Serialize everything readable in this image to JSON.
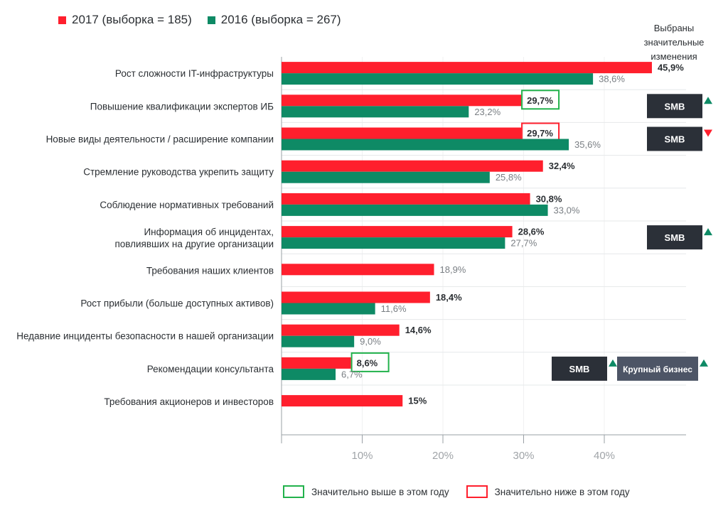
{
  "legend_top": [
    {
      "label": "2017 (выборка = 185)",
      "color": "#ff1f2d"
    },
    {
      "label": "2016 (выборка = 267)",
      "color": "#0e8a65"
    }
  ],
  "side_title": "Выбраны значительные изменения",
  "legend_bottom": [
    {
      "label": "Значительно выше в этом году",
      "border": "#22b24c"
    },
    {
      "label": "Значительно ниже в этом году",
      "border": "#ff1f2d"
    }
  ],
  "colors": {
    "red": "#ff1f2d",
    "green": "#0e8a65",
    "badge_dark": "#2b3038",
    "badge_gray": "#4d5566",
    "arrow_up": "#0e8a65",
    "arrow_down": "#ff1f2d",
    "axis": "#9aa0a6"
  },
  "chart_data": {
    "type": "bar",
    "orientation": "horizontal",
    "categories": [
      "Рост сложности IT-инфраструктуры",
      "Повышение квалификации экспертов ИБ",
      "Новые виды деятельности / расширение компании",
      "Стремление руководства укрепить защиту",
      "Соблюдение нормативных требований",
      "Информация об инцидентах,\nповлиявших на другие организации",
      "Требования наших клиентов",
      "Рост прибыли (больше доступных активов)",
      "Недавние инциденты безопасности в нашей организации",
      "Рекомендации консультанта",
      "Требования акционеров и инвесторов"
    ],
    "series": [
      {
        "name": "2017 (выборка = 185)",
        "values": [
          45.9,
          29.7,
          29.7,
          32.4,
          30.8,
          28.6,
          18.9,
          18.4,
          14.6,
          8.6,
          15
        ],
        "labels": [
          "45,9%",
          "29,7%",
          "29,7%",
          "32,4%",
          "30,8%",
          "28,6%",
          "18,9%",
          "18,4%",
          "14,6%",
          "8,6%",
          "15%"
        ],
        "bold": [
          true,
          true,
          true,
          true,
          true,
          true,
          false,
          true,
          true,
          true,
          true
        ]
      },
      {
        "name": "2016 (выборка = 267)",
        "values": [
          38.6,
          23.2,
          35.6,
          25.8,
          33.0,
          27.7,
          null,
          11.6,
          9.0,
          6.7,
          null
        ],
        "labels": [
          "38,6%",
          "23,2%",
          "35,6%",
          "25,8%",
          "33,0%",
          "27,7%",
          null,
          "11,6%",
          "9,0%",
          "6,7%",
          null
        ]
      }
    ],
    "highlight": [
      null,
      "higher",
      "lower",
      null,
      null,
      null,
      null,
      null,
      null,
      "higher",
      null
    ],
    "badges": [
      [],
      [
        {
          "text": "SMB",
          "dir": "up",
          "style": "dark"
        }
      ],
      [
        {
          "text": "SMB",
          "dir": "down",
          "style": "dark"
        }
      ],
      [],
      [],
      [
        {
          "text": "SMB",
          "dir": "up",
          "style": "dark"
        }
      ],
      [],
      [],
      [],
      [
        {
          "text": "SMB",
          "dir": "up",
          "style": "dark"
        },
        {
          "text": "Крупный бизнес",
          "dir": "up",
          "style": "gray"
        }
      ],
      []
    ],
    "x_ticks": [
      10,
      20,
      30,
      40
    ],
    "x_tick_labels": [
      "10%",
      "20%",
      "30%",
      "40%"
    ],
    "xlim": [
      0,
      50
    ]
  }
}
